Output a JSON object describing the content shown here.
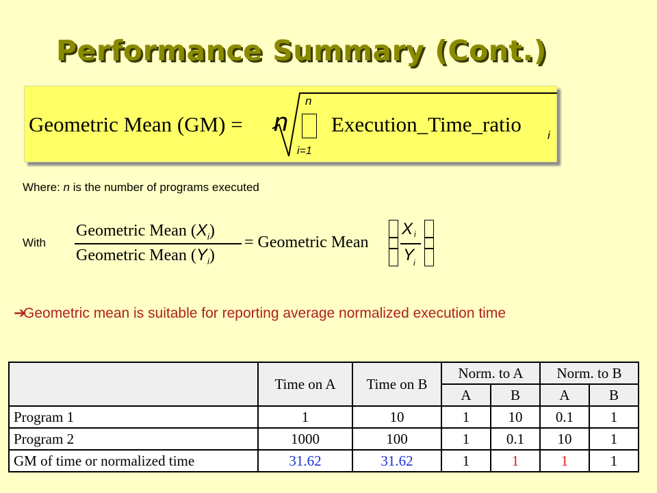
{
  "title": "Performance Summary (Cont.)",
  "gm_formula": {
    "lhs": "Geometric Mean (GM) =",
    "root_index": "n",
    "sum_upper": "n",
    "sum_lower": "i=1",
    "term": "Execution_Time_ratio",
    "term_sub": "i"
  },
  "where_text": {
    "prefix": "Where: ",
    "var": "n",
    "suffix": " is the number of programs executed"
  },
  "with_label": "With",
  "ratio_formula": {
    "num": "Geometric Mean (",
    "num_var": "X",
    "num_sub": "i",
    "den": "Geometric Mean (",
    "den_var": "Y",
    "den_sub": "i",
    "close": ")",
    "equals": "= Geometric Mean",
    "frac_num": "X",
    "frac_den": "Y",
    "frac_sub": "i"
  },
  "bullet": "Geometric mean is suitable for reporting average normalized execution time",
  "table": {
    "headers": [
      "Time on A",
      "Time on B",
      "Norm. to A",
      "Norm. to B"
    ],
    "subheaders": [
      "A",
      "B",
      "A",
      "B"
    ],
    "rows": [
      {
        "label": "Program 1",
        "time_a": "1",
        "time_b": "10",
        "na_a": "1",
        "na_b": "10",
        "nb_a": "0.1",
        "nb_b": "1"
      },
      {
        "label": "Program 2",
        "time_a": "1000",
        "time_b": "100",
        "na_a": "1",
        "na_b": "0.1",
        "nb_a": "10",
        "nb_b": "1"
      },
      {
        "label": "GM of time or normalized time",
        "time_a": "31.62",
        "time_b": "31.62",
        "na_a": "1",
        "na_b": "1",
        "nb_a": "1",
        "nb_b": "1"
      }
    ]
  },
  "colors": {
    "background": "#ffffc6",
    "title": "#8a8a00",
    "formula_box": "#ffff66",
    "bullet": "#b02020",
    "gm_blue": "#1a2fd8",
    "gm_red": "#d81a1a"
  }
}
